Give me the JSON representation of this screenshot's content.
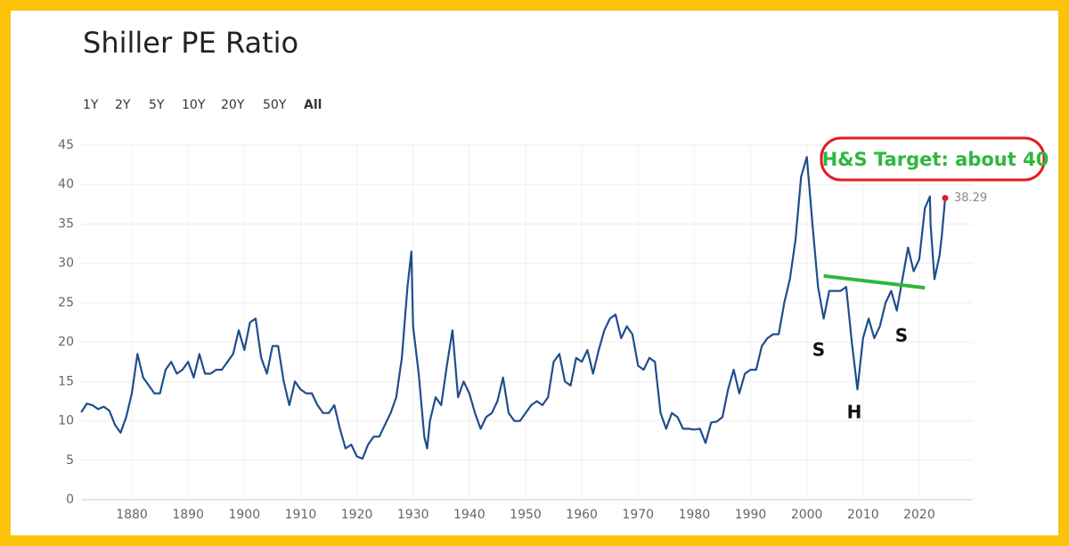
{
  "controls": {
    "ranges": [
      "1Y",
      "2Y",
      "5Y",
      "10Y",
      "20Y",
      "50Y",
      "All"
    ],
    "active": 6
  },
  "chart_data": {
    "type": "line",
    "title": "Shiller PE Ratio",
    "xlim": [
      1871,
      2028.5
    ],
    "xticks": [
      1880,
      1890,
      1900,
      1910,
      1920,
      1930,
      1940,
      1950,
      1960,
      1970,
      1980,
      1990,
      2000,
      2010,
      2020
    ],
    "ylim": [
      0,
      45
    ],
    "yticks": [
      0,
      5,
      10,
      15,
      20,
      25,
      30,
      35,
      40,
      45
    ],
    "grid": true,
    "series": [
      {
        "color": "#1f4e8c",
        "x": [
          1871,
          1872,
          1873,
          1874,
          1875,
          1876,
          1877,
          1878,
          1879,
          1880,
          1881,
          1882,
          1883,
          1884,
          1885,
          1886,
          1887,
          1888,
          1889,
          1890,
          1891,
          1892,
          1893,
          1894,
          1895,
          1896,
          1897,
          1898,
          1899,
          1900,
          1901,
          1902,
          1903,
          1904,
          1905,
          1906,
          1907,
          1908,
          1909,
          1910,
          1911,
          1912,
          1913,
          1914,
          1915,
          1916,
          1917,
          1918,
          1919,
          1920,
          1921,
          1922,
          1923,
          1924,
          1925,
          1926,
          1927,
          1928,
          1929,
          1929.7,
          1930,
          1931,
          1932,
          1932.5,
          1933,
          1934,
          1935,
          1936,
          1937,
          1938,
          1939,
          1940,
          1941,
          1942,
          1943,
          1944,
          1945,
          1946,
          1947,
          1948,
          1949,
          1950,
          1951,
          1952,
          1953,
          1954,
          1955,
          1956,
          1957,
          1958,
          1959,
          1960,
          1961,
          1962,
          1963,
          1964,
          1965,
          1966,
          1967,
          1968,
          1969,
          1970,
          1971,
          1972,
          1973,
          1974,
          1975,
          1976,
          1977,
          1978,
          1979,
          1980,
          1981,
          1982,
          1983,
          1984,
          1985,
          1986,
          1987,
          1988,
          1989,
          1990,
          1991,
          1992,
          1993,
          1994,
          1995,
          1996,
          1997,
          1998,
          1999,
          2000,
          2001,
          2002,
          2003,
          2004,
          2005,
          2006,
          2007,
          2008,
          2009,
          2010,
          2011,
          2012,
          2013,
          2014,
          2015,
          2016,
          2017,
          2018,
          2019,
          2020,
          2021,
          2021.9,
          2022,
          2022.7,
          2023,
          2023.6,
          2024,
          2024.6
        ],
        "values": [
          11.1,
          12.2,
          12.0,
          11.5,
          11.8,
          11.3,
          9.5,
          8.5,
          10.5,
          13.5,
          18.5,
          15.5,
          14.5,
          13.5,
          13.5,
          16.5,
          17.5,
          16,
          16.5,
          17.5,
          15.5,
          18.5,
          16,
          16,
          16.5,
          16.5,
          17.5,
          18.5,
          21.5,
          19,
          22.5,
          23,
          18,
          16,
          19.5,
          19.5,
          15,
          12,
          15,
          14,
          13.5,
          13.5,
          12,
          11,
          11,
          12,
          9,
          6.5,
          7,
          5.5,
          5.2,
          7,
          8,
          8,
          9.5,
          11,
          13,
          18,
          27,
          31.5,
          22,
          16,
          8,
          6.5,
          10,
          13,
          12,
          17,
          21.5,
          13,
          15,
          13.5,
          11,
          9,
          10.5,
          11,
          12.5,
          15.5,
          11,
          10,
          10,
          11,
          12,
          12.5,
          12,
          13,
          17.5,
          18.5,
          15,
          14.5,
          18,
          17.5,
          19,
          16,
          19,
          21.5,
          23,
          23.5,
          20.5,
          22,
          21,
          17,
          16.5,
          18,
          17.5,
          11,
          9,
          11,
          10.5,
          9,
          9,
          8.9,
          9,
          7.2,
          9.8,
          9.9,
          10.5,
          14,
          16.5,
          13.5,
          16,
          16.5,
          16.5,
          19.5,
          20.5,
          21,
          21,
          25,
          28,
          33,
          41,
          43.5,
          35,
          27,
          23,
          26.5,
          26.5,
          26.5,
          27,
          20,
          14,
          20.5,
          23,
          20.5,
          22,
          25,
          26.5,
          24,
          28,
          32,
          29,
          30.5,
          37,
          38.5,
          35,
          28,
          29,
          31,
          33.5,
          38.29
        ],
        "last_point_color": "#e31b23"
      }
    ],
    "neckline": {
      "x": [
        2003,
        2021
      ],
      "y": [
        28.4,
        26.9
      ],
      "color": "#2db83d"
    },
    "annotations": [
      "H&S Target: about 40",
      "S",
      "H",
      "S"
    ]
  }
}
